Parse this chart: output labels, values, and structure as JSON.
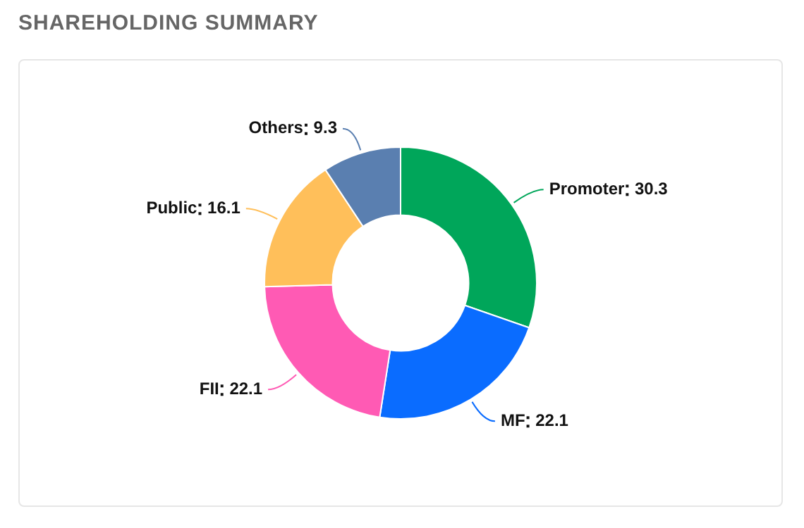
{
  "chart_data": {
    "type": "donut",
    "title": "SHAREHOLDING SUMMARY",
    "categories": [
      "Promoter",
      "MF",
      "FII",
      "Public",
      "Others"
    ],
    "values": [
      30.3,
      22.1,
      22.1,
      16.1,
      9.3
    ],
    "colors": [
      "#00a65a",
      "#0a6cff",
      "#ff5ab4",
      "#ffbf5a",
      "#5a7fb0"
    ],
    "data_labels": true,
    "legend": false
  }
}
